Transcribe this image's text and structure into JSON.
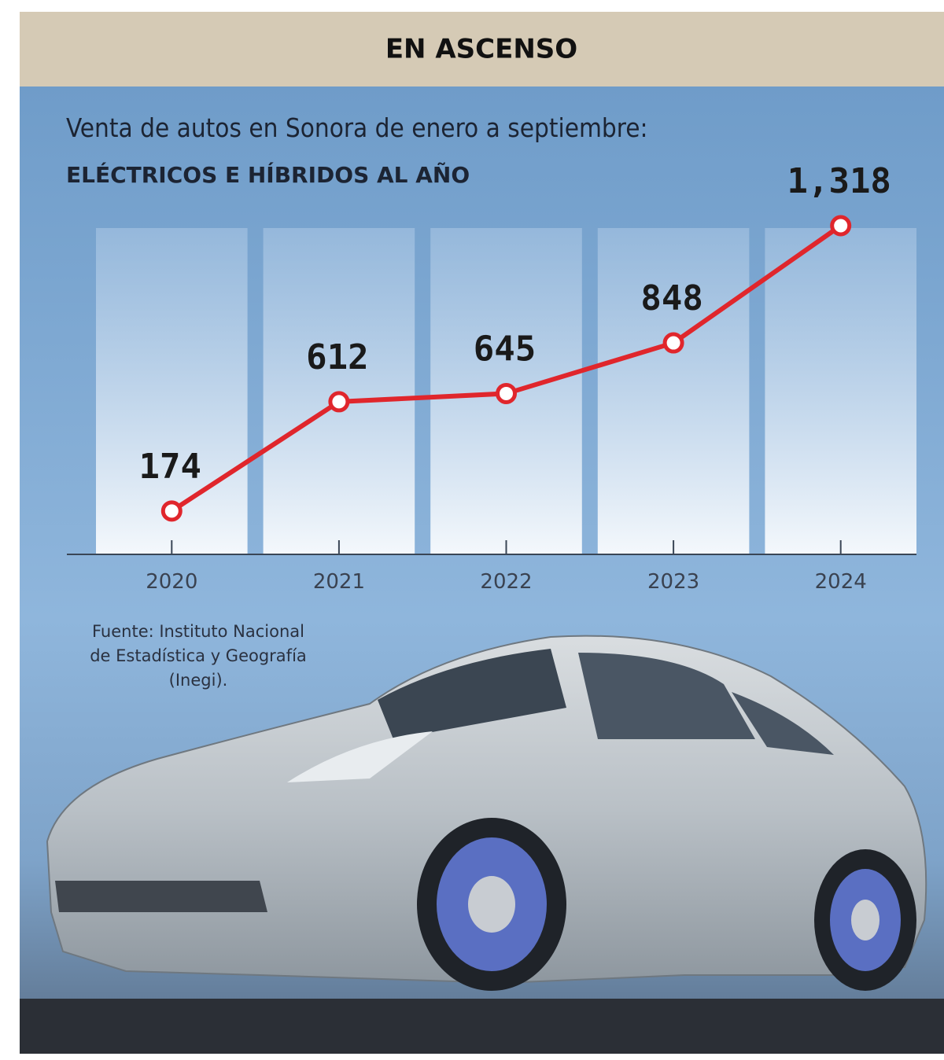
{
  "chart_data": {
    "type": "line",
    "title": "EN ASCENSO",
    "subtitle": "Venta de autos en Sonora de enero a septiembre:",
    "subtitle2": "ELÉCTRICOS E HÍBRIDOS AL AÑO",
    "categories": [
      "2020",
      "2021",
      "2022",
      "2023",
      "2024"
    ],
    "values": [
      174,
      612,
      645,
      848,
      1318
    ],
    "value_labels": [
      "174",
      "612",
      "645",
      "848",
      "1,318"
    ],
    "color": "#e0262c",
    "source": [
      "Fuente: Instituto Nacional",
      "de Estadística y Geografía",
      "(Inegi)."
    ]
  }
}
